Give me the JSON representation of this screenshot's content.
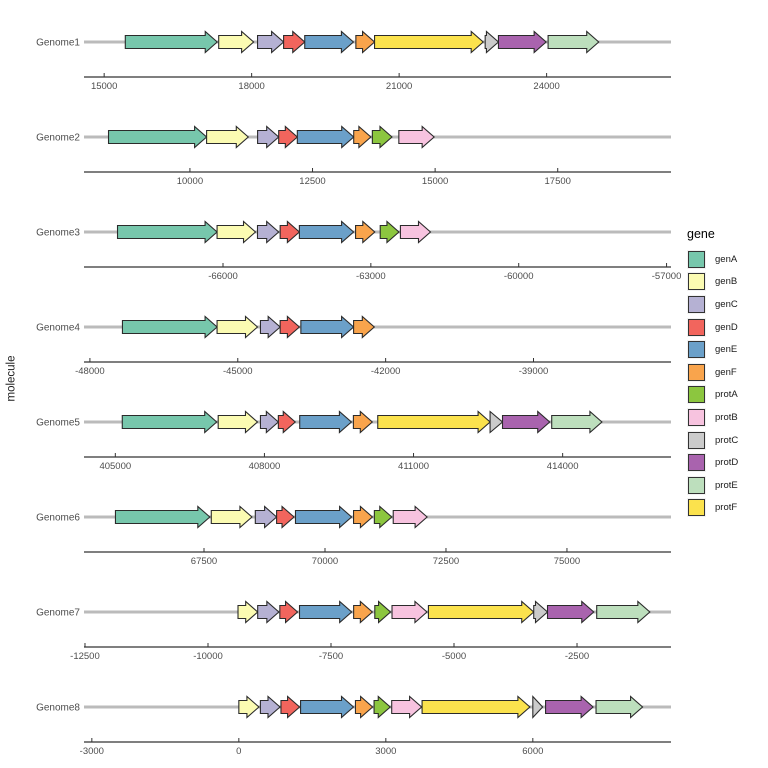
{
  "chart_data": {
    "type": "gene-arrow-map",
    "title": "",
    "ylabel": "molecule",
    "grid": false,
    "legend": {
      "title": "gene",
      "position": "right",
      "items": [
        {
          "label": "genA",
          "color": "#77C7AC"
        },
        {
          "label": "genB",
          "color": "#FBFBB2"
        },
        {
          "label": "genC",
          "color": "#B5B1D3"
        },
        {
          "label": "genD",
          "color": "#F2655D"
        },
        {
          "label": "genE",
          "color": "#6BA0C9"
        },
        {
          "label": "genF",
          "color": "#F9A44C"
        },
        {
          "label": "protA",
          "color": "#8CC63F"
        },
        {
          "label": "protB",
          "color": "#F7C3DF"
        },
        {
          "label": "protC",
          "color": "#CBCBCB"
        },
        {
          "label": "protD",
          "color": "#A963AE"
        },
        {
          "label": "protE",
          "color": "#BDDFBD"
        },
        {
          "label": "protF",
          "color": "#FBE24D"
        }
      ]
    },
    "style": {
      "track_line_color": "#BBBBBB",
      "axis_color": "#333333",
      "axis_text_color": "#4D4D4D",
      "molecule_text_color": "#4D4D4D",
      "arrow_stroke": "#2B2B2B",
      "background": "#FFFFFF"
    },
    "facets": [
      {
        "molecule": "Genome1",
        "domain": [
          14590,
          26530
        ],
        "ticks": [
          15000,
          18000,
          21000,
          24000
        ],
        "genes": [
          {
            "gene": "genA",
            "start": 15430,
            "end": 17300
          },
          {
            "gene": "genB",
            "start": 17330,
            "end": 18040
          },
          {
            "gene": "genC",
            "start": 18120,
            "end": 18650
          },
          {
            "gene": "genD",
            "start": 18650,
            "end": 19080
          },
          {
            "gene": "genE",
            "start": 19080,
            "end": 20070
          },
          {
            "gene": "genF",
            "start": 20120,
            "end": 20500
          },
          {
            "gene": "protF",
            "start": 20500,
            "end": 22710
          },
          {
            "gene": "protC",
            "start": 22750,
            "end": 23020
          },
          {
            "gene": "protD",
            "start": 23020,
            "end": 23990
          },
          {
            "gene": "protE",
            "start": 24030,
            "end": 25060
          }
        ]
      },
      {
        "molecule": "Genome2",
        "domain": [
          7840,
          19810
        ],
        "ticks": [
          10000,
          12500,
          15000,
          17500
        ],
        "genes": [
          {
            "gene": "genA",
            "start": 8340,
            "end": 10340
          },
          {
            "gene": "genB",
            "start": 10340,
            "end": 11190
          },
          {
            "gene": "genC",
            "start": 11380,
            "end": 11810
          },
          {
            "gene": "genD",
            "start": 11810,
            "end": 12190
          },
          {
            "gene": "genE",
            "start": 12190,
            "end": 13340
          },
          {
            "gene": "genF",
            "start": 13340,
            "end": 13690
          },
          {
            "gene": "protA",
            "start": 13720,
            "end": 14120
          },
          {
            "gene": "protB",
            "start": 14260,
            "end": 14980
          }
        ]
      },
      {
        "molecule": "Genome3",
        "domain": [
          -68820,
          -56910
        ],
        "ticks": [
          -66000,
          -63000,
          -60000,
          -57000
        ],
        "genes": [
          {
            "gene": "genA",
            "start": -68140,
            "end": -66120
          },
          {
            "gene": "genB",
            "start": -66120,
            "end": -65340
          },
          {
            "gene": "genC",
            "start": -65300,
            "end": -64870
          },
          {
            "gene": "genD",
            "start": -64840,
            "end": -64450
          },
          {
            "gene": "genE",
            "start": -64450,
            "end": -63350
          },
          {
            "gene": "genF",
            "start": -63310,
            "end": -62920
          },
          {
            "gene": "protA",
            "start": -62810,
            "end": -62430
          },
          {
            "gene": "protB",
            "start": -62400,
            "end": -61790
          }
        ]
      },
      {
        "molecule": "Genome4",
        "domain": [
          -48120,
          -36210
        ],
        "ticks": [
          -48000,
          -45000,
          -42000,
          -39000
        ],
        "genes": [
          {
            "gene": "genA",
            "start": -47340,
            "end": -45420
          },
          {
            "gene": "genB",
            "start": -45420,
            "end": -44600
          },
          {
            "gene": "genC",
            "start": -44540,
            "end": -44140
          },
          {
            "gene": "genD",
            "start": -44140,
            "end": -43750
          },
          {
            "gene": "genE",
            "start": -43720,
            "end": -42650
          },
          {
            "gene": "genF",
            "start": -42650,
            "end": -42230
          }
        ]
      },
      {
        "molecule": "Genome5",
        "domain": [
          404370,
          416180
        ],
        "ticks": [
          405000,
          408000,
          411000,
          414000
        ],
        "genes": [
          {
            "gene": "genA",
            "start": 405140,
            "end": 407040
          },
          {
            "gene": "genB",
            "start": 407070,
            "end": 407860
          },
          {
            "gene": "genC",
            "start": 407920,
            "end": 408280
          },
          {
            "gene": "genD",
            "start": 408280,
            "end": 408620
          },
          {
            "gene": "genE",
            "start": 408710,
            "end": 409750
          },
          {
            "gene": "genF",
            "start": 409790,
            "end": 410170
          },
          {
            "gene": "protF",
            "start": 410280,
            "end": 412540
          },
          {
            "gene": "protC",
            "start": 412540,
            "end": 412790
          },
          {
            "gene": "protD",
            "start": 412790,
            "end": 413740
          },
          {
            "gene": "protE",
            "start": 413780,
            "end": 414790
          }
        ]
      },
      {
        "molecule": "Genome6",
        "domain": [
          65020,
          77150
        ],
        "ticks": [
          67500,
          70000,
          72500,
          75000
        ],
        "genes": [
          {
            "gene": "genA",
            "start": 65670,
            "end": 67620
          },
          {
            "gene": "genB",
            "start": 67650,
            "end": 68490
          },
          {
            "gene": "genC",
            "start": 68560,
            "end": 69000
          },
          {
            "gene": "genD",
            "start": 69000,
            "end": 69360
          },
          {
            "gene": "genE",
            "start": 69390,
            "end": 70550
          },
          {
            "gene": "genF",
            "start": 70590,
            "end": 70980
          },
          {
            "gene": "protA",
            "start": 71020,
            "end": 71380
          },
          {
            "gene": "protB",
            "start": 71410,
            "end": 72110
          }
        ]
      },
      {
        "molecule": "Genome7",
        "domain": [
          -12520,
          -590
        ],
        "ticks": [
          -12500,
          -10000,
          -7500,
          -5000,
          -2500
        ],
        "genes": [
          {
            "gene": "genB",
            "start": -9390,
            "end": -8990
          },
          {
            "gene": "genC",
            "start": -8990,
            "end": -8560
          },
          {
            "gene": "genD",
            "start": -8540,
            "end": -8180
          },
          {
            "gene": "genE",
            "start": -8140,
            "end": -7080
          },
          {
            "gene": "genF",
            "start": -7040,
            "end": -6660
          },
          {
            "gene": "protA",
            "start": -6610,
            "end": -6290
          },
          {
            "gene": "protB",
            "start": -6260,
            "end": -5550
          },
          {
            "gene": "protF",
            "start": -5520,
            "end": -3380
          },
          {
            "gene": "protC",
            "start": -3380,
            "end": -3100
          },
          {
            "gene": "protD",
            "start": -3100,
            "end": -2160
          },
          {
            "gene": "protE",
            "start": -2100,
            "end": -1020
          }
        ]
      },
      {
        "molecule": "Genome8",
        "domain": [
          -3160,
          8820
        ],
        "ticks": [
          -3000,
          0,
          3000,
          6000
        ],
        "genes": [
          {
            "gene": "genB",
            "start": 0,
            "end": 410
          },
          {
            "gene": "genC",
            "start": 440,
            "end": 840
          },
          {
            "gene": "genD",
            "start": 860,
            "end": 1240
          },
          {
            "gene": "genE",
            "start": 1260,
            "end": 2340
          },
          {
            "gene": "genF",
            "start": 2380,
            "end": 2730
          },
          {
            "gene": "protA",
            "start": 2760,
            "end": 3090
          },
          {
            "gene": "protB",
            "start": 3120,
            "end": 3730
          },
          {
            "gene": "protF",
            "start": 3740,
            "end": 5940
          },
          {
            "gene": "protC",
            "start": 6000,
            "end": 6200
          },
          {
            "gene": "protD",
            "start": 6260,
            "end": 7230
          },
          {
            "gene": "protE",
            "start": 7290,
            "end": 8240
          }
        ]
      }
    ]
  }
}
